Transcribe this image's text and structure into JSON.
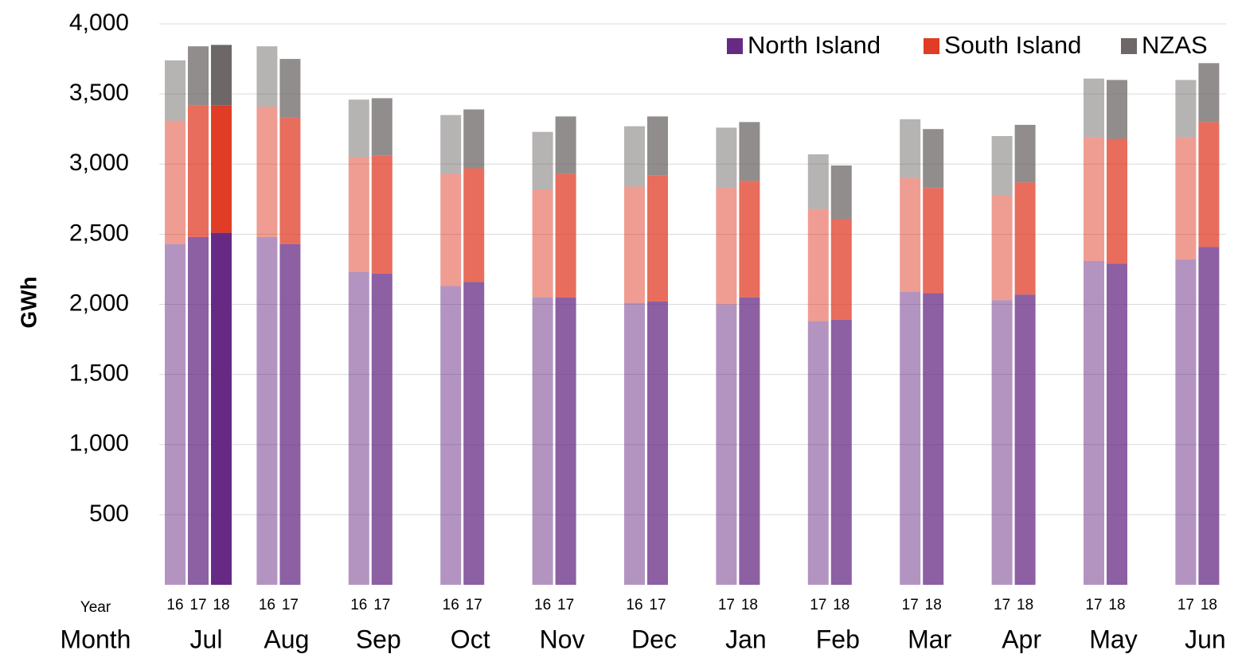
{
  "chart_data": {
    "type": "grouped_stacked_bar",
    "y_label": "GWh",
    "year_axis_label": "Year",
    "month_axis_label": "Month",
    "ylim": [
      0,
      4000
    ],
    "yticks": [
      500,
      {
        "value": 1000,
        "label": "1,000"
      },
      {
        "value": 1500,
        "label": "1,500"
      },
      {
        "value": 2000,
        "label": "2,000"
      },
      {
        "value": 2500,
        "label": "2,500"
      },
      {
        "value": 3000,
        "label": "3,000"
      },
      {
        "value": 3500,
        "label": "3,500"
      },
      {
        "value": 4000,
        "label": "4,000"
      }
    ],
    "grid": true,
    "legend": "top-right",
    "series": [
      {
        "name": "North Island",
        "color": "#672a84"
      },
      {
        "name": "South Island",
        "color": "#e03c26"
      },
      {
        "name": "NZAS",
        "color": "#6d6767"
      }
    ],
    "groups": [
      {
        "month": "Jul",
        "bars": [
          {
            "year": "16",
            "values": [
              2430,
              880,
              430
            ]
          },
          {
            "year": "17",
            "values": [
              2480,
              940,
              420
            ]
          },
          {
            "year": "18",
            "values": [
              2510,
              910,
              430
            ]
          }
        ]
      },
      {
        "month": "Aug",
        "bars": [
          {
            "year": "16",
            "values": [
              2480,
              930,
              430
            ]
          },
          {
            "year": "17",
            "values": [
              2430,
              900,
              420
            ]
          }
        ]
      },
      {
        "month": "Sep",
        "bars": [
          {
            "year": "16",
            "values": [
              2230,
              820,
              410
            ]
          },
          {
            "year": "17",
            "values": [
              2220,
              840,
              410
            ]
          }
        ]
      },
      {
        "month": "Oct",
        "bars": [
          {
            "year": "16",
            "values": [
              2130,
              800,
              420
            ]
          },
          {
            "year": "17",
            "values": [
              2160,
              810,
              420
            ]
          }
        ]
      },
      {
        "month": "Nov",
        "bars": [
          {
            "year": "16",
            "values": [
              2050,
              770,
              410
            ]
          },
          {
            "year": "17",
            "values": [
              2050,
              880,
              410
            ]
          }
        ]
      },
      {
        "month": "Dec",
        "bars": [
          {
            "year": "16",
            "values": [
              2010,
              830,
              430
            ]
          },
          {
            "year": "17",
            "values": [
              2020,
              900,
              420
            ]
          }
        ]
      },
      {
        "month": "Jan",
        "bars": [
          {
            "year": "17",
            "values": [
              2000,
              830,
              430
            ]
          },
          {
            "year": "18",
            "values": [
              2050,
              830,
              420
            ]
          }
        ]
      },
      {
        "month": "Feb",
        "bars": [
          {
            "year": "17",
            "values": [
              1880,
              800,
              390
            ]
          },
          {
            "year": "18",
            "values": [
              1890,
              720,
              380
            ]
          }
        ]
      },
      {
        "month": "Mar",
        "bars": [
          {
            "year": "17",
            "values": [
              2090,
              810,
              420
            ]
          },
          {
            "year": "18",
            "values": [
              2080,
              750,
              420
            ]
          }
        ]
      },
      {
        "month": "Apr",
        "bars": [
          {
            "year": "17",
            "values": [
              2030,
              750,
              420
            ]
          },
          {
            "year": "18",
            "values": [
              2070,
              800,
              410
            ]
          }
        ]
      },
      {
        "month": "May",
        "bars": [
          {
            "year": "17",
            "values": [
              2310,
              880,
              420
            ]
          },
          {
            "year": "18",
            "values": [
              2290,
              890,
              420
            ]
          }
        ]
      },
      {
        "month": "Jun",
        "bars": [
          {
            "year": "17",
            "values": [
              2320,
              870,
              410
            ]
          },
          {
            "year": "18",
            "values": [
              2410,
              890,
              420
            ]
          }
        ]
      }
    ]
  }
}
